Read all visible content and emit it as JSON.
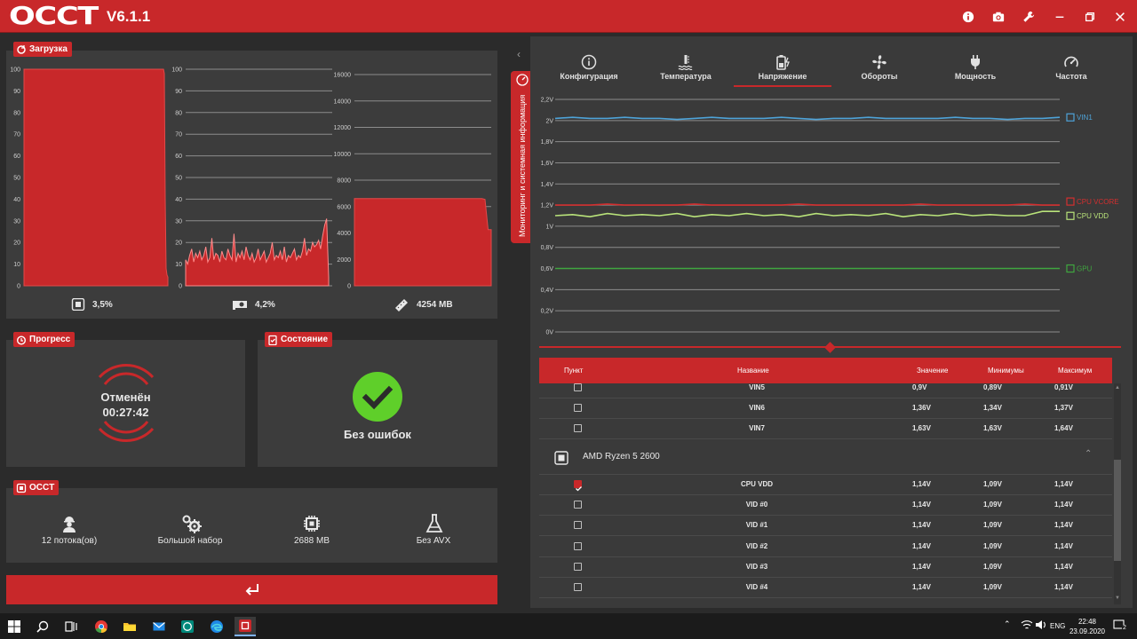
{
  "app": {
    "logo": "OCCT",
    "version": "V6.1.1"
  },
  "titlebar_icons": [
    "info-icon",
    "camera-icon",
    "wrench-icon",
    "minimize-icon",
    "restore-icon",
    "close-icon"
  ],
  "load_panel": {
    "badge": "Загрузка",
    "cpu_value": "3,5%",
    "gpu_value": "4,2%",
    "ram_value": "4254 MB"
  },
  "progress_panel": {
    "badge": "Прогресс",
    "status": "Отменён",
    "time": "00:27:42"
  },
  "state_panel": {
    "badge": "Состояние",
    "status": "Без ошибок"
  },
  "occt_panel": {
    "badge": "OCCT",
    "items": [
      {
        "icon": "worker-icon",
        "label": "12 потока(ов)"
      },
      {
        "icon": "gears-icon",
        "label": "Большой набор"
      },
      {
        "icon": "chip-icon",
        "label": "2688 MB"
      },
      {
        "icon": "flask-icon",
        "label": "Без AVX"
      }
    ]
  },
  "side_tab": {
    "label": "Мониторинг и системная информация"
  },
  "monitor_tabs": [
    {
      "icon": "info-icon",
      "label": "Конфигурация"
    },
    {
      "icon": "thermometer-icon",
      "label": "Температура"
    },
    {
      "icon": "battery-icon",
      "label": "Напряжение",
      "active": true
    },
    {
      "icon": "fan-icon",
      "label": "Обороты"
    },
    {
      "icon": "plug-icon",
      "label": "Мощность"
    },
    {
      "icon": "gauge-icon",
      "label": "Частота"
    }
  ],
  "table": {
    "headers": {
      "item": "Пункт",
      "name": "Название",
      "value": "Значение",
      "min": "Минимумы",
      "max": "Максимум"
    },
    "group": "AMD Ryzen 5 2600",
    "rows_top": [
      {
        "name": "VIN5",
        "value": "0,9V",
        "min": "0,89V",
        "max": "0,91V",
        "checked": false
      },
      {
        "name": "VIN6",
        "value": "1,36V",
        "min": "1,34V",
        "max": "1,37V",
        "checked": false
      },
      {
        "name": "VIN7",
        "value": "1,63V",
        "min": "1,63V",
        "max": "1,64V",
        "checked": false
      }
    ],
    "rows_bottom": [
      {
        "name": "CPU VDD",
        "value": "1,14V",
        "min": "1,09V",
        "max": "1,14V",
        "checked": true
      },
      {
        "name": "VID #0",
        "value": "1,14V",
        "min": "1,09V",
        "max": "1,14V",
        "checked": false
      },
      {
        "name": "VID #1",
        "value": "1,14V",
        "min": "1,09V",
        "max": "1,14V",
        "checked": false
      },
      {
        "name": "VID #2",
        "value": "1,14V",
        "min": "1,09V",
        "max": "1,14V",
        "checked": false
      },
      {
        "name": "VID #3",
        "value": "1,14V",
        "min": "1,09V",
        "max": "1,14V",
        "checked": false
      },
      {
        "name": "VID #4",
        "value": "1,14V",
        "min": "1,09V",
        "max": "1,14V",
        "checked": false
      }
    ]
  },
  "taskbar": {
    "lang": "ENG",
    "time": "22:48",
    "date": "23.09.2020",
    "notif": "2"
  },
  "colors": {
    "accent": "#c8282a",
    "ok": "#5fcf2a",
    "vin1": "#4ea3d8",
    "cpu_vcore": "#d32f2f",
    "cpu_vdd": "#b9e37a",
    "gpu": "#3fa63f"
  },
  "chart_data": [
    {
      "type": "area",
      "title": "CPU load",
      "ylim": [
        0,
        100
      ],
      "yticks": [
        "0",
        "10",
        "20",
        "30",
        "40",
        "50",
        "60",
        "70",
        "80",
        "90",
        "100"
      ],
      "values": [
        100,
        100,
        100,
        100,
        100,
        100,
        100,
        100,
        100,
        100,
        100,
        100,
        100,
        100,
        100,
        100,
        100,
        100,
        100,
        100,
        100,
        100,
        100,
        100,
        100,
        100,
        100,
        100,
        100,
        100,
        100,
        100,
        100,
        100,
        100,
        100,
        100,
        100,
        100,
        100,
        100,
        100,
        100,
        100,
        100,
        100,
        100,
        100,
        100,
        100,
        100,
        100,
        100,
        100,
        100,
        100,
        100,
        100,
        100,
        100,
        100,
        100,
        100,
        100,
        100,
        100,
        100,
        100,
        100,
        100,
        100,
        100,
        100,
        100,
        100,
        100,
        100,
        100,
        100,
        100,
        100,
        100,
        100,
        100,
        100,
        100,
        100,
        100,
        100,
        100,
        100,
        100,
        100,
        100,
        100,
        100,
        100,
        100,
        100,
        100,
        100,
        100,
        100,
        100,
        100,
        100,
        100,
        100,
        100,
        100,
        100,
        100,
        100,
        100,
        100,
        100,
        100,
        100,
        100,
        100,
        100,
        100,
        100,
        100,
        100,
        100,
        100,
        100,
        100,
        100,
        100,
        100,
        100,
        100,
        100,
        100,
        100,
        100,
        100,
        100,
        100,
        100,
        100,
        100,
        100,
        100,
        100,
        100,
        100,
        100,
        100,
        100,
        100,
        100,
        100,
        100,
        100,
        100,
        100,
        100,
        98,
        40,
        8,
        5,
        4
      ]
    },
    {
      "type": "area",
      "title": "GPU load",
      "ylim": [
        0,
        100
      ],
      "yticks": [
        "0",
        "10",
        "20",
        "30",
        "40",
        "50",
        "60",
        "70",
        "80",
        "90",
        "100"
      ],
      "values": [
        12,
        10,
        14,
        17,
        11,
        15,
        13,
        16,
        12,
        14,
        18,
        11,
        13,
        22,
        12,
        15,
        14,
        11,
        16,
        13,
        12,
        17,
        14,
        12,
        24,
        11,
        15,
        13,
        16,
        12,
        18,
        14,
        12,
        15,
        11,
        13,
        17,
        12,
        14,
        16,
        11,
        13,
        15,
        20,
        12,
        14,
        13,
        16,
        12,
        18,
        11,
        14,
        13,
        15,
        17,
        12,
        14,
        13,
        16,
        22,
        14,
        17,
        16,
        20,
        18,
        19,
        21,
        17,
        23,
        28,
        31,
        4
      ]
    },
    {
      "type": "area",
      "title": "RAM usage",
      "ylim": [
        0,
        16000
      ],
      "yticks": [
        "0",
        "2000",
        "4000",
        "6000",
        "8000",
        "10000",
        "12000",
        "14000",
        "16000"
      ],
      "values": [
        6600,
        6600,
        6600,
        6600,
        6600,
        6600,
        6600,
        6600,
        6600,
        6600,
        6600,
        6600,
        6600,
        6600,
        6600,
        6600,
        6600,
        6600,
        6600,
        6600,
        6600,
        6600,
        6600,
        6600,
        6600,
        6600,
        6600,
        6600,
        6600,
        6600,
        6600,
        6600,
        6600,
        6600,
        6600,
        6600,
        6600,
        6600,
        6600,
        6600,
        6600,
        6600,
        6550,
        4250,
        4250
      ]
    },
    {
      "type": "line",
      "title": "Voltage",
      "ylim": [
        0,
        2.2
      ],
      "yticks": [
        "0V",
        "0,2V",
        "0,4V",
        "0,6V",
        "0,8V",
        "1V",
        "1,2V",
        "1,4V",
        "1,6V",
        "1,8V",
        "2V",
        "2,2V"
      ],
      "series": [
        {
          "name": "VIN1",
          "color": "#4ea3d8",
          "values": [
            2.02,
            2.03,
            2.02,
            2.02,
            2.03,
            2.02,
            2.02,
            2.01,
            2.02,
            2.03,
            2.02,
            2.02,
            2.02,
            2.03,
            2.02,
            2.01,
            2.02,
            2.02,
            2.03,
            2.02,
            2.02,
            2.02,
            2.02,
            2.03,
            2.02,
            2.02,
            2.01,
            2.02,
            2.02,
            2.03
          ]
        },
        {
          "name": "CPU VCORE",
          "color": "#d32f2f",
          "values": [
            1.2,
            1.2,
            1.2,
            1.21,
            1.2,
            1.2,
            1.2,
            1.2,
            1.21,
            1.2,
            1.2,
            1.2,
            1.2,
            1.2,
            1.21,
            1.2,
            1.2,
            1.2,
            1.2,
            1.2,
            1.2,
            1.21,
            1.2,
            1.2,
            1.2,
            1.2,
            1.2,
            1.21,
            1.2,
            1.2
          ]
        },
        {
          "name": "CPU VDD",
          "color": "#b9e37a",
          "values": [
            1.1,
            1.11,
            1.09,
            1.12,
            1.1,
            1.11,
            1.1,
            1.12,
            1.09,
            1.11,
            1.1,
            1.12,
            1.1,
            1.11,
            1.09,
            1.12,
            1.1,
            1.11,
            1.1,
            1.12,
            1.09,
            1.11,
            1.1,
            1.12,
            1.1,
            1.11,
            1.1,
            1.1,
            1.14,
            1.14
          ]
        },
        {
          "name": "GPU",
          "color": "#3fa63f",
          "values": [
            0.6,
            0.6,
            0.6,
            0.6,
            0.6,
            0.6,
            0.6,
            0.6,
            0.6,
            0.6,
            0.6,
            0.6,
            0.6,
            0.6,
            0.6,
            0.6,
            0.6,
            0.6,
            0.6,
            0.6,
            0.6,
            0.6,
            0.6,
            0.6,
            0.6,
            0.6,
            0.6,
            0.6,
            0.6,
            0.6
          ]
        }
      ]
    }
  ]
}
